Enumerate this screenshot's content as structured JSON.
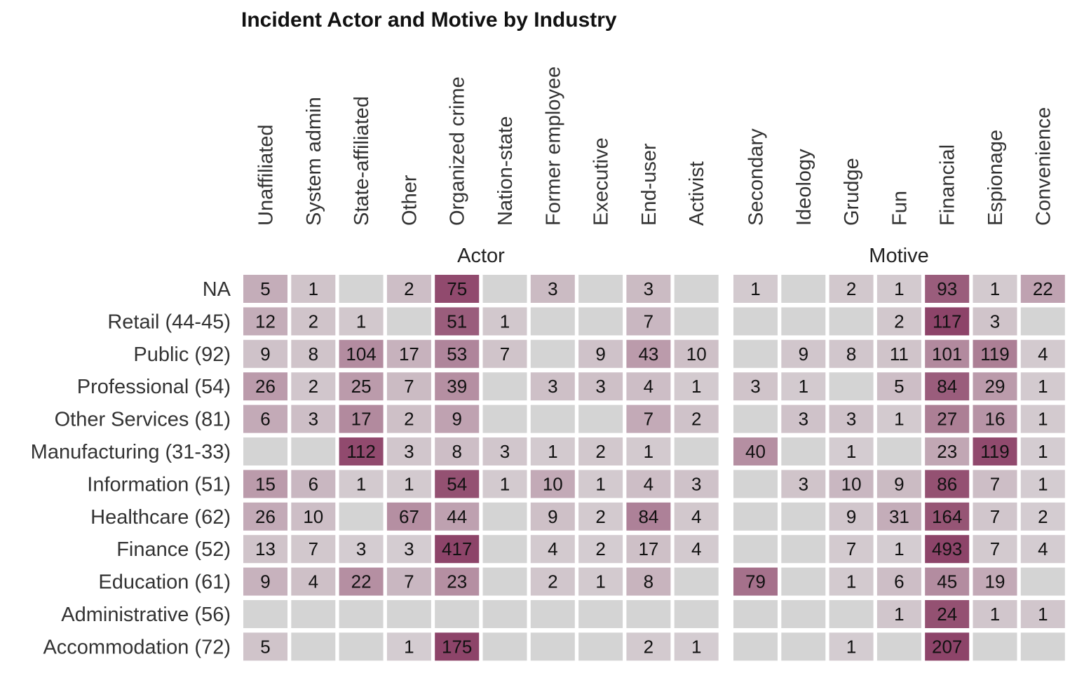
{
  "chart_data": {
    "type": "heatmap",
    "title": "Incident Actor and Motive by Industry",
    "rows": [
      "NA",
      "Retail (44-45)",
      "Public (92)",
      "Professional (54)",
      "Other Services (81)",
      "Manufacturing (31-33)",
      "Information (51)",
      "Healthcare (62)",
      "Finance (52)",
      "Education (61)",
      "Administrative (56)",
      "Accommodation (72)"
    ],
    "colors": {
      "empty": "#d4d4d4",
      "low": "#d6cfd3",
      "high": "#8a3e64"
    },
    "panels": [
      {
        "name": "Actor",
        "columns": [
          "Unaffiliated",
          "System admin",
          "State-affiliated",
          "Other",
          "Organized crime",
          "Nation-state",
          "Former employee",
          "Executive",
          "End-user",
          "Activist"
        ],
        "values": [
          [
            5,
            1,
            null,
            2,
            75,
            null,
            3,
            null,
            3,
            null
          ],
          [
            12,
            2,
            1,
            null,
            51,
            1,
            null,
            null,
            7,
            null
          ],
          [
            9,
            8,
            104,
            17,
            53,
            7,
            null,
            9,
            43,
            10
          ],
          [
            26,
            2,
            25,
            7,
            39,
            null,
            3,
            3,
            4,
            1
          ],
          [
            6,
            3,
            17,
            2,
            9,
            null,
            null,
            null,
            7,
            2
          ],
          [
            null,
            null,
            112,
            3,
            8,
            3,
            1,
            2,
            1,
            null
          ],
          [
            15,
            6,
            1,
            1,
            54,
            1,
            10,
            1,
            4,
            3
          ],
          [
            26,
            10,
            null,
            67,
            44,
            null,
            9,
            2,
            84,
            4
          ],
          [
            13,
            7,
            3,
            3,
            417,
            null,
            4,
            2,
            17,
            4
          ],
          [
            9,
            4,
            22,
            7,
            23,
            null,
            2,
            1,
            8,
            null
          ],
          [
            null,
            null,
            null,
            null,
            null,
            null,
            null,
            null,
            null,
            null
          ],
          [
            5,
            null,
            null,
            1,
            175,
            null,
            null,
            null,
            2,
            1
          ]
        ],
        "shades": [
          [
            0.18,
            0.05,
            0,
            0.08,
            0.9,
            0,
            0.1,
            0,
            0.1,
            0
          ],
          [
            0.18,
            0.05,
            0.03,
            0,
            0.75,
            0.03,
            0,
            0,
            0.12,
            0
          ],
          [
            0.06,
            0.05,
            0.4,
            0.15,
            0.45,
            0.05,
            0,
            0.06,
            0.3,
            0.07
          ],
          [
            0.3,
            0.04,
            0.3,
            0.1,
            0.38,
            0,
            0.07,
            0.07,
            0.08,
            0.02
          ],
          [
            0.2,
            0.08,
            0.42,
            0.07,
            0.25,
            0,
            0,
            0,
            0.2,
            0.06
          ],
          [
            0,
            0,
            0.9,
            0.04,
            0.08,
            0.04,
            0.02,
            0.03,
            0.02,
            0
          ],
          [
            0.3,
            0.12,
            0.02,
            0.02,
            0.85,
            0.02,
            0.2,
            0.02,
            0.08,
            0.06
          ],
          [
            0.2,
            0.08,
            0,
            0.38,
            0.26,
            0,
            0.07,
            0.02,
            0.48,
            0.03
          ],
          [
            0.05,
            0.03,
            0.01,
            0.01,
            0.95,
            0,
            0.02,
            0.01,
            0.07,
            0.02
          ],
          [
            0.15,
            0.07,
            0.38,
            0.12,
            0.38,
            0,
            0.04,
            0.02,
            0.14,
            0
          ],
          [
            0,
            0,
            0,
            0,
            0,
            0,
            0,
            0,
            0,
            0
          ],
          [
            0.05,
            0,
            0,
            0.01,
            0.95,
            0,
            0,
            0,
            0.02,
            0.01
          ]
        ]
      },
      {
        "name": "Motive",
        "columns": [
          "Secondary",
          "Ideology",
          "Grudge",
          "Fun",
          "Financial",
          "Espionage",
          "Convenience"
        ],
        "values": [
          [
            1,
            null,
            2,
            1,
            93,
            1,
            22
          ],
          [
            null,
            null,
            null,
            2,
            117,
            3,
            null
          ],
          [
            null,
            9,
            8,
            11,
            101,
            119,
            4
          ],
          [
            3,
            1,
            null,
            5,
            84,
            29,
            1
          ],
          [
            null,
            3,
            3,
            1,
            27,
            16,
            1
          ],
          [
            40,
            null,
            1,
            null,
            23,
            119,
            1
          ],
          [
            null,
            3,
            10,
            9,
            86,
            7,
            1
          ],
          [
            null,
            null,
            9,
            31,
            164,
            7,
            2
          ],
          [
            null,
            null,
            7,
            1,
            493,
            7,
            4
          ],
          [
            79,
            null,
            1,
            6,
            45,
            19,
            null
          ],
          [
            null,
            null,
            null,
            1,
            24,
            1,
            1
          ],
          [
            null,
            null,
            1,
            null,
            207,
            null,
            null
          ]
        ],
        "shades": [
          [
            0.02,
            0,
            0.03,
            0.02,
            0.75,
            0.02,
            0.25
          ],
          [
            0,
            0,
            0,
            0.03,
            0.95,
            0.05,
            0
          ],
          [
            0,
            0.04,
            0.04,
            0.05,
            0.42,
            0.5,
            0.02
          ],
          [
            0.05,
            0.02,
            0,
            0.08,
            0.75,
            0.3,
            0.02
          ],
          [
            0,
            0.06,
            0.06,
            0.02,
            0.5,
            0.35,
            0.02
          ],
          [
            0.38,
            0,
            0.01,
            0,
            0.22,
            0.9,
            0.01
          ],
          [
            0,
            0.05,
            0.12,
            0.1,
            0.85,
            0.08,
            0.01
          ],
          [
            0,
            0,
            0.04,
            0.18,
            0.82,
            0.04,
            0.01
          ],
          [
            0,
            0,
            0.02,
            0.01,
            0.95,
            0.02,
            0.01
          ],
          [
            0.6,
            0,
            0.02,
            0.08,
            0.4,
            0.2,
            0
          ],
          [
            0,
            0,
            0,
            0.04,
            0.85,
            0.04,
            0.04
          ],
          [
            0,
            0,
            0.01,
            0,
            0.95,
            0,
            0
          ]
        ]
      }
    ]
  }
}
